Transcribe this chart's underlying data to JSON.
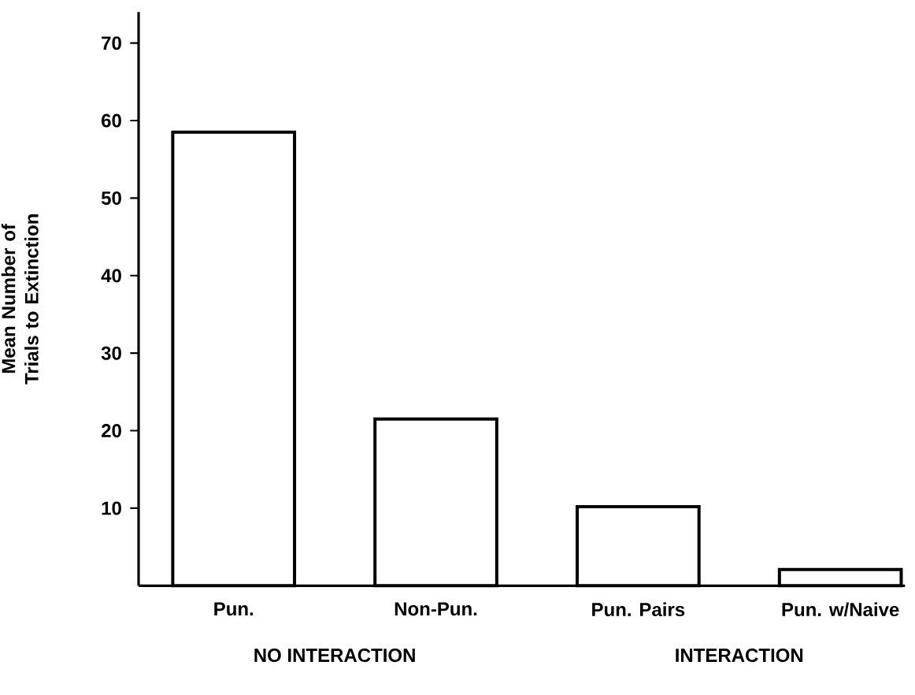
{
  "chart_data": {
    "type": "bar",
    "ylabel": "Mean Number of Trials to Extinction",
    "categories": [
      "Pun.",
      "Non-Pun.",
      "Pun. Pairs",
      "Pun. w/Naive"
    ],
    "values": [
      58.5,
      21.5,
      10.2,
      2.1
    ],
    "color": "#ffffff",
    "ylim": [
      0,
      74
    ],
    "yticks": [
      10,
      20,
      30,
      40,
      50,
      60,
      70
    ],
    "annotations": [
      "NO INTERACTION",
      "INTERACTION"
    ],
    "grid": false
  }
}
